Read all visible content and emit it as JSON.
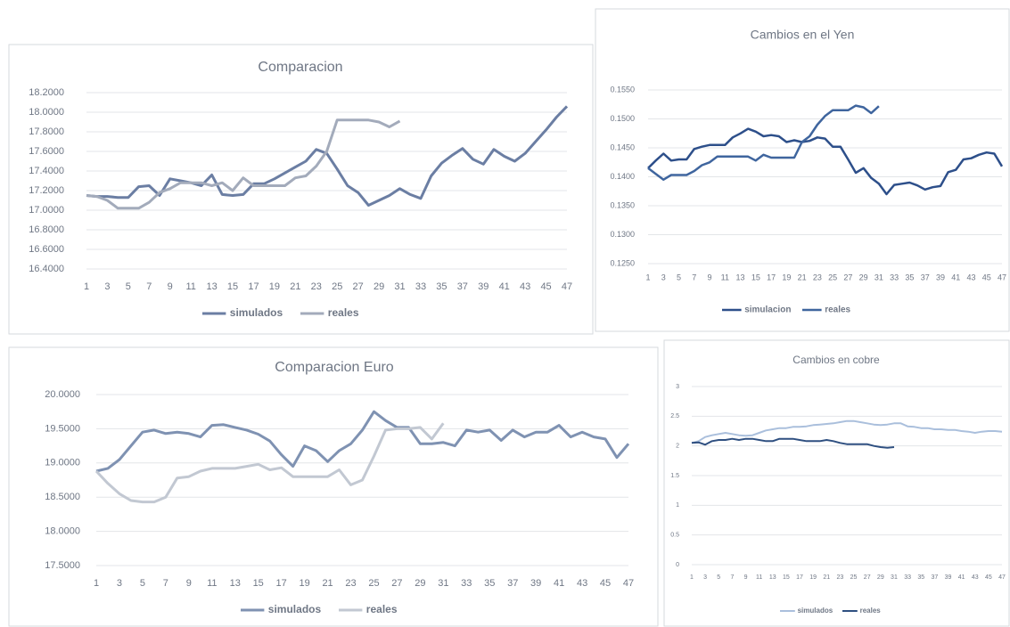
{
  "chart_data": [
    {
      "type": "line",
      "title": "Comparacion",
      "categories": [
        1,
        null,
        3,
        null,
        5,
        null,
        7,
        null,
        9,
        null,
        11,
        null,
        13,
        null,
        15,
        null,
        17,
        null,
        19,
        null,
        21,
        null,
        23,
        null,
        25,
        null,
        27,
        null,
        29,
        null,
        31,
        null,
        33,
        null,
        35,
        null,
        37,
        null,
        39,
        null,
        41,
        null,
        43,
        null,
        45,
        null,
        47
      ],
      "ylim": [
        16.4,
        18.2
      ],
      "yticks": [
        {
          "value": 16.4,
          "label": "16.4000"
        },
        {
          "value": 16.6,
          "label": "16.6000"
        },
        {
          "value": 16.8,
          "label": "16.8000"
        },
        {
          "value": 17.0,
          "label": "17.0000"
        },
        {
          "value": 17.2,
          "label": "17.2000"
        },
        {
          "value": 17.4,
          "label": "17.4000"
        },
        {
          "value": 17.6,
          "label": "17.6000"
        },
        {
          "value": 17.8,
          "label": "17.8000"
        },
        {
          "value": 18.0,
          "label": "18.0000"
        },
        {
          "value": 18.2,
          "label": "18.2000"
        }
      ],
      "grid": true,
      "series": [
        {
          "name": "simulados",
          "color": "#6b7ea3",
          "values": [
            17.15,
            17.14,
            17.14,
            17.13,
            17.13,
            17.24,
            17.25,
            17.15,
            17.32,
            17.3,
            17.28,
            17.25,
            17.36,
            17.16,
            17.15,
            17.16,
            17.27,
            17.27,
            17.32,
            17.38,
            17.44,
            17.5,
            17.62,
            17.58,
            17.42,
            17.25,
            17.18,
            17.05,
            17.1,
            17.15,
            17.22,
            17.16,
            17.12,
            17.35,
            17.48,
            17.56,
            17.63,
            17.52,
            17.47,
            17.62,
            17.55,
            17.5,
            17.58,
            17.7,
            17.82,
            17.95,
            18.06
          ]
        },
        {
          "name": "reales",
          "color": "#a3abbb",
          "values": [
            17.15,
            17.14,
            17.1,
            17.02,
            17.02,
            17.02,
            17.08,
            17.18,
            17.22,
            17.28,
            17.28,
            17.28,
            17.25,
            17.28,
            17.2,
            17.33,
            17.25,
            17.25,
            17.25,
            17.25,
            17.33,
            17.35,
            17.45,
            17.6,
            17.92,
            17.92,
            17.92,
            17.92,
            17.9,
            17.85,
            17.91,
            null,
            null,
            null,
            null,
            null,
            null,
            null,
            null,
            null,
            null,
            null,
            null,
            null,
            null,
            null,
            null
          ]
        }
      ]
    },
    {
      "type": "line",
      "title": "Cambios en el Yen",
      "categories": [
        1,
        null,
        3,
        null,
        5,
        null,
        7,
        null,
        9,
        null,
        11,
        null,
        13,
        null,
        15,
        null,
        17,
        null,
        19,
        null,
        21,
        null,
        23,
        null,
        25,
        null,
        27,
        null,
        29,
        null,
        31,
        null,
        33,
        null,
        35,
        null,
        37,
        null,
        39,
        null,
        41,
        null,
        43,
        null,
        45,
        null,
        47
      ],
      "ylim": [
        0.125,
        0.155
      ],
      "yticks": [
        {
          "value": 0.125,
          "label": "0.1250"
        },
        {
          "value": 0.13,
          "label": "0.1300"
        },
        {
          "value": 0.135,
          "label": "0.1350"
        },
        {
          "value": 0.14,
          "label": "0.1400"
        },
        {
          "value": 0.145,
          "label": "0.1450"
        },
        {
          "value": 0.15,
          "label": "0.1500"
        },
        {
          "value": 0.155,
          "label": "0.1550"
        }
      ],
      "grid": true,
      "series": [
        {
          "name": "simulacion",
          "color": "#2d4f8a",
          "values": [
            0.1415,
            0.1428,
            0.144,
            0.1428,
            0.143,
            0.143,
            0.1448,
            0.1452,
            0.1455,
            0.1455,
            0.1455,
            0.1468,
            0.1475,
            0.1483,
            0.1478,
            0.147,
            0.1472,
            0.147,
            0.146,
            0.1463,
            0.146,
            0.1462,
            0.1468,
            0.1466,
            0.1452,
            0.1452,
            0.143,
            0.1407,
            0.1415,
            0.1398,
            0.1388,
            0.137,
            0.1386,
            0.1388,
            0.139,
            0.1385,
            0.1378,
            0.1382,
            0.1384,
            0.1408,
            0.1412,
            0.143,
            0.1432,
            0.1438,
            0.1442,
            0.144,
            0.1418
          ]
        },
        {
          "name": "reales",
          "color": "#3f659e",
          "values": [
            0.1415,
            0.1405,
            0.1395,
            0.1403,
            0.1403,
            0.1403,
            0.141,
            0.142,
            0.1425,
            0.1435,
            0.1435,
            0.1435,
            0.1435,
            0.1435,
            0.1428,
            0.1438,
            0.1433,
            0.1433,
            0.1433,
            0.1433,
            0.146,
            0.147,
            0.149,
            0.1505,
            0.1515,
            0.1515,
            0.1515,
            0.1523,
            0.152,
            0.151,
            0.1522,
            null,
            null,
            null,
            null,
            null,
            null,
            null,
            null,
            null,
            null,
            null,
            null,
            null,
            null,
            null,
            null
          ]
        }
      ]
    },
    {
      "type": "line",
      "title": "Comparacion Euro",
      "categories": [
        1,
        null,
        3,
        null,
        5,
        null,
        7,
        null,
        9,
        null,
        11,
        null,
        13,
        null,
        15,
        null,
        17,
        null,
        19,
        null,
        21,
        null,
        23,
        null,
        25,
        null,
        27,
        null,
        29,
        null,
        31,
        null,
        33,
        null,
        35,
        null,
        37,
        null,
        39,
        null,
        41,
        null,
        43,
        null,
        45,
        null,
        47
      ],
      "ylim": [
        17.5,
        20.0
      ],
      "yticks": [
        {
          "value": 17.5,
          "label": "17.5000"
        },
        {
          "value": 18.0,
          "label": "18.0000"
        },
        {
          "value": 18.5,
          "label": "18.5000"
        },
        {
          "value": 19.0,
          "label": "19.0000"
        },
        {
          "value": 19.5,
          "label": "19.5000"
        },
        {
          "value": 20.0,
          "label": "20.0000"
        }
      ],
      "grid": true,
      "series": [
        {
          "name": "simulados",
          "color": "#7f92b2",
          "values": [
            18.88,
            18.92,
            19.05,
            19.25,
            19.45,
            19.48,
            19.43,
            19.45,
            19.43,
            19.38,
            19.55,
            19.56,
            19.52,
            19.48,
            19.42,
            19.32,
            19.12,
            18.95,
            19.25,
            19.18,
            19.02,
            19.18,
            19.28,
            19.48,
            19.75,
            19.62,
            19.52,
            19.52,
            19.28,
            19.28,
            19.3,
            19.25,
            19.48,
            19.45,
            19.48,
            19.33,
            19.48,
            19.38,
            19.45,
            19.45,
            19.55,
            19.38,
            19.45,
            19.38,
            19.35,
            19.08,
            19.28
          ]
        },
        {
          "name": "reales",
          "color": "#c2c8d2",
          "values": [
            18.88,
            18.7,
            18.55,
            18.45,
            18.43,
            18.43,
            18.5,
            18.78,
            18.8,
            18.88,
            18.92,
            18.92,
            18.92,
            18.95,
            18.98,
            18.9,
            18.93,
            18.8,
            18.8,
            18.8,
            18.8,
            18.9,
            18.68,
            18.75,
            19.1,
            19.48,
            19.5,
            19.5,
            19.52,
            19.35,
            19.58,
            null,
            null,
            null,
            null,
            null,
            null,
            null,
            null,
            null,
            null,
            null,
            null,
            null,
            null,
            null,
            null
          ]
        }
      ]
    },
    {
      "type": "line",
      "title": "Cambios en cobre",
      "categories": [
        1,
        null,
        3,
        null,
        5,
        null,
        7,
        null,
        9,
        null,
        11,
        null,
        13,
        null,
        15,
        null,
        17,
        null,
        19,
        null,
        21,
        null,
        23,
        null,
        25,
        null,
        27,
        null,
        29,
        null,
        31,
        null,
        33,
        null,
        35,
        null,
        37,
        null,
        39,
        null,
        41,
        null,
        43,
        null,
        45,
        null,
        47
      ],
      "ylim": [
        0,
        3
      ],
      "yticks": [
        0,
        0.5,
        1,
        1.5,
        2,
        2.5,
        3
      ],
      "grid": true,
      "series": [
        {
          "name": "simulados",
          "color": "#aabfdc",
          "values": [
            2.05,
            2.08,
            2.15,
            2.18,
            2.2,
            2.22,
            2.2,
            2.18,
            2.17,
            2.18,
            2.22,
            2.26,
            2.28,
            2.3,
            2.3,
            2.32,
            2.32,
            2.33,
            2.35,
            2.36,
            2.37,
            2.38,
            2.4,
            2.42,
            2.42,
            2.4,
            2.38,
            2.36,
            2.35,
            2.36,
            2.38,
            2.38,
            2.33,
            2.32,
            2.3,
            2.3,
            2.28,
            2.28,
            2.27,
            2.27,
            2.25,
            2.24,
            2.22,
            2.24,
            2.25,
            2.25,
            2.24
          ]
        },
        {
          "name": "reales",
          "color": "#2e4f80",
          "values": [
            2.05,
            2.06,
            2.02,
            2.08,
            2.1,
            2.1,
            2.12,
            2.1,
            2.12,
            2.12,
            2.1,
            2.08,
            2.08,
            2.12,
            2.12,
            2.12,
            2.1,
            2.08,
            2.08,
            2.08,
            2.1,
            2.08,
            2.05,
            2.03,
            2.03,
            2.03,
            2.03,
            2.0,
            1.98,
            1.97,
            1.98,
            null,
            null,
            null,
            null,
            null,
            null,
            null,
            null,
            null,
            null,
            null,
            null,
            null,
            null,
            null,
            null
          ]
        }
      ]
    }
  ]
}
